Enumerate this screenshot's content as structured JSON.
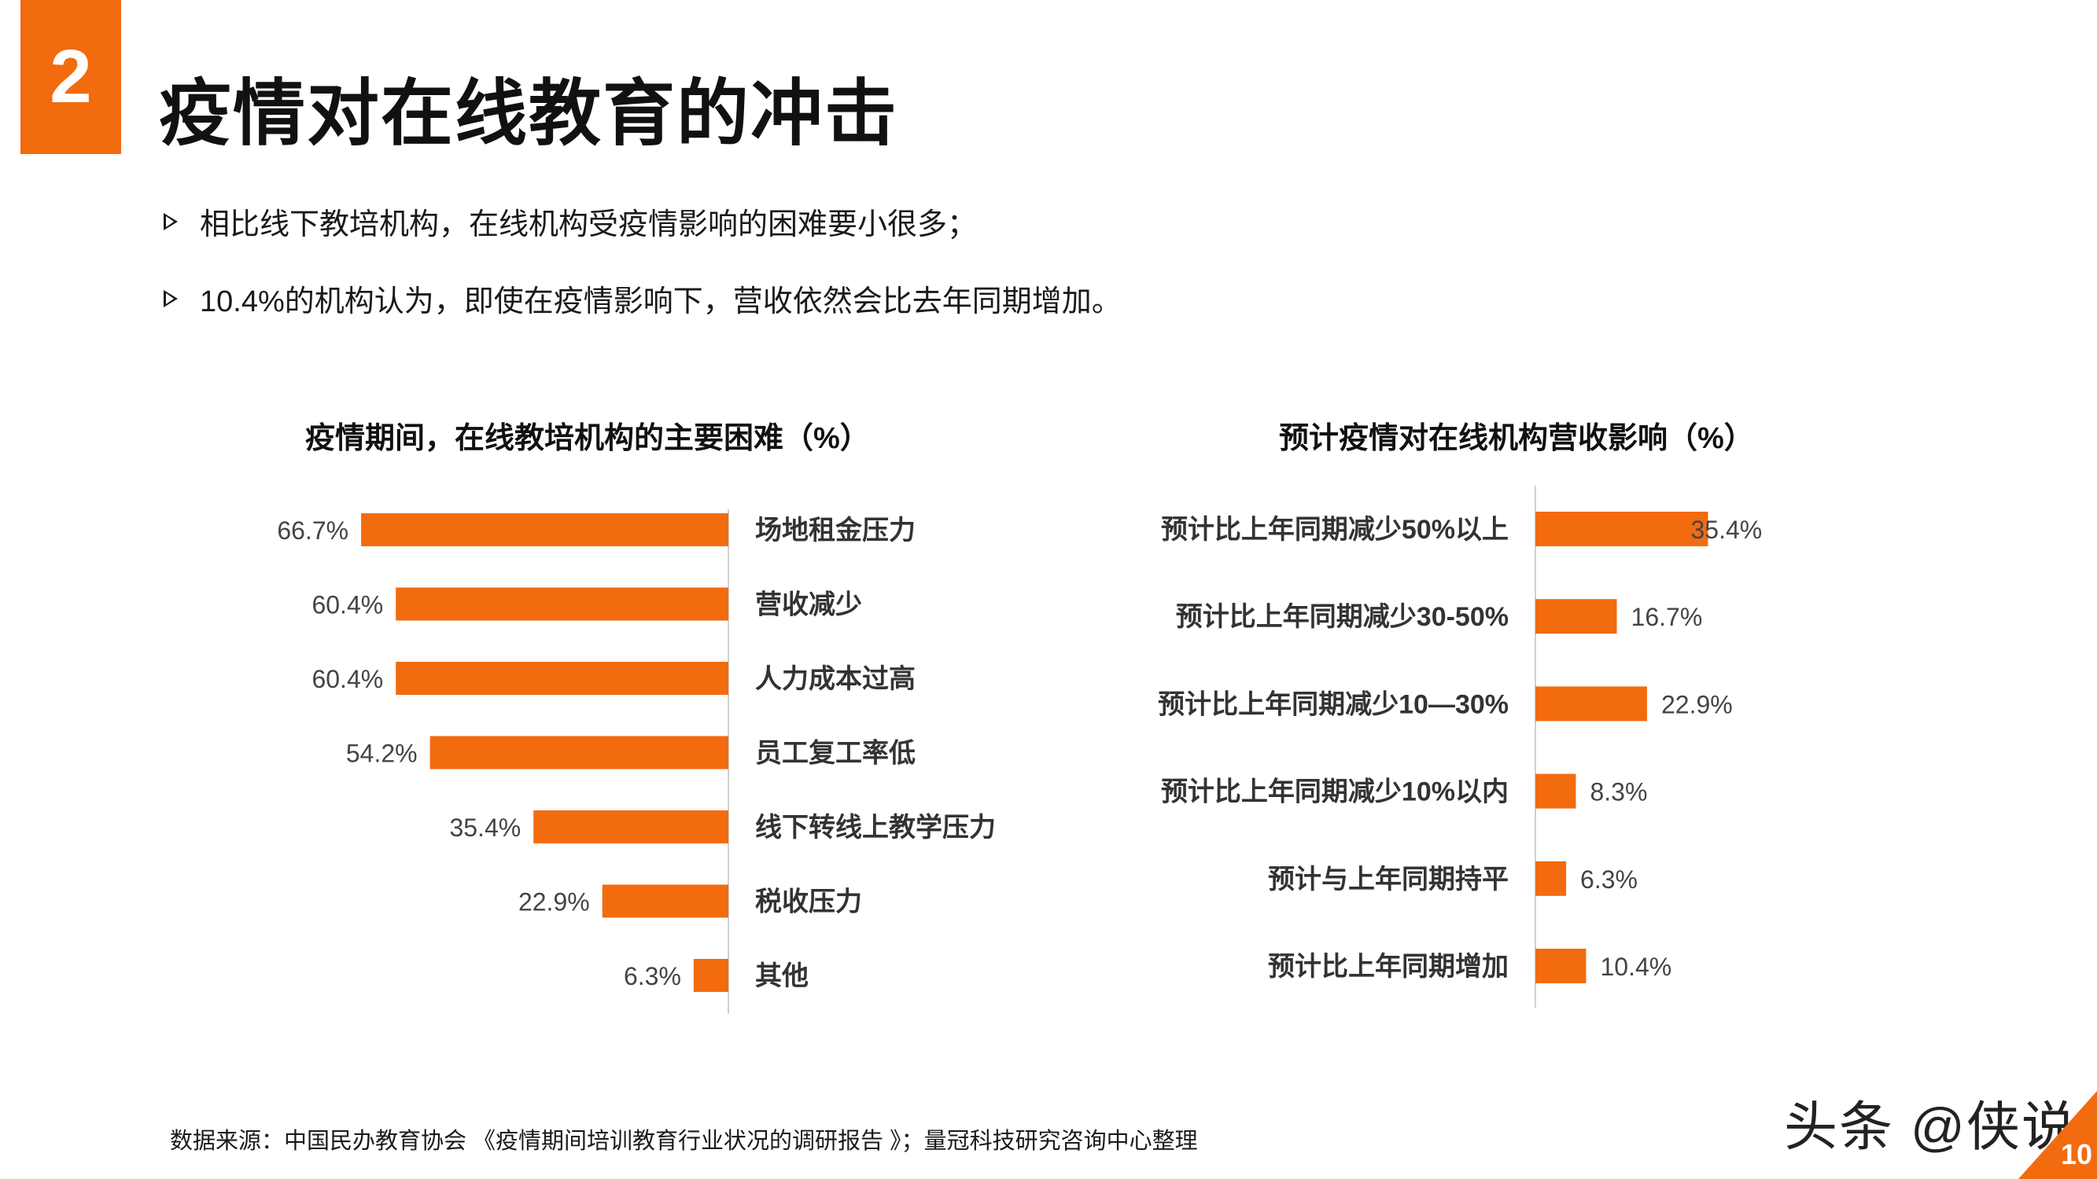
{
  "header": {
    "section_number": "2",
    "title": "疫情对在线教育的冲击"
  },
  "bullets": [
    "相比线下教培机构，在线机构受疫情影响的困难要小很多；",
    "10.4%的机构认为，即使在疫情影响下，营收依然会比去年同期增加。"
  ],
  "colors": {
    "accent": "#f26b0f",
    "text": "#1a1a1a",
    "axis": "#d0d0d0"
  },
  "chart_data": [
    {
      "type": "bar",
      "orientation": "horizontal",
      "title": "疫情期间，在线教培机构的主要困难（%）",
      "categories": [
        "场地租金压力",
        "营收减少",
        "人力成本过高",
        "员工复工率低",
        "线下转线上教学压力",
        "税收压力",
        "其他"
      ],
      "values": [
        66.7,
        60.4,
        60.4,
        54.2,
        35.4,
        22.9,
        6.3
      ],
      "value_labels": [
        "66.7%",
        "60.4%",
        "60.4%",
        "54.2%",
        "35.4%",
        "22.9%",
        "6.3%"
      ],
      "xlim": [
        0,
        100
      ],
      "bar_direction": "right-to-left",
      "grid": false,
      "legend": "none"
    },
    {
      "type": "bar",
      "orientation": "horizontal",
      "title": "预计疫情对在线机构营收影响（%）",
      "categories": [
        "预计比上年同期减少50%以上",
        "预计比上年同期减少30-50%",
        "预计比上年同期减少10—30%",
        "预计比上年同期减少10%以内",
        "预计与上年同期持平",
        "预计比上年同期增加"
      ],
      "values": [
        35.4,
        16.7,
        22.9,
        8.3,
        6.3,
        10.4
      ],
      "value_labels": [
        "35.4%",
        "16.7%",
        "22.9%",
        "8.3%",
        "6.3%",
        "10.4%"
      ],
      "xlim": [
        0,
        100
      ],
      "bar_direction": "left-to-right",
      "grid": false,
      "legend": "none"
    }
  ],
  "footer": {
    "source": "数据来源：中国民办教育协会 《疫情期间培训教育行业状况的调研报告 》；量冠科技研究咨询中心整理",
    "watermark": "头条 @侠说",
    "page_number": "10"
  }
}
